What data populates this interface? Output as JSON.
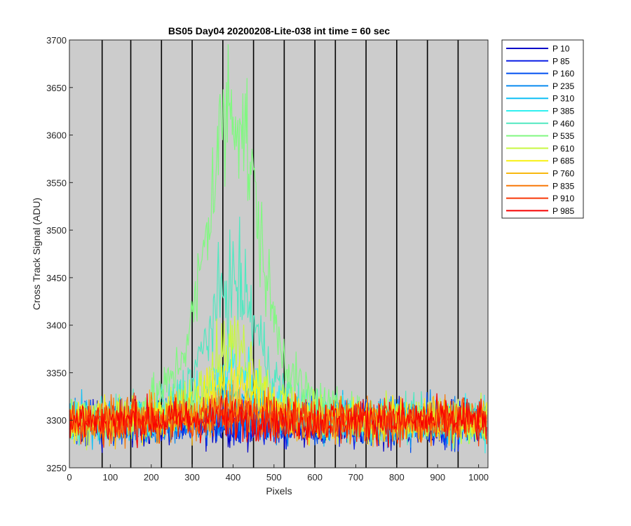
{
  "chart_data": {
    "type": "line",
    "title": "BS05 Day04 20200208-Lite-038 int time = 60 sec",
    "xlabel": "Pixels",
    "ylabel": "Cross Track Signal (ADU)",
    "xlim": [
      0,
      1023
    ],
    "ylim": [
      3250,
      3700
    ],
    "xticks": [
      0,
      100,
      200,
      300,
      400,
      500,
      600,
      700,
      800,
      900,
      1000
    ],
    "yticks": [
      3250,
      3300,
      3350,
      3400,
      3450,
      3500,
      3550,
      3600,
      3650,
      3700
    ],
    "background_color": "#cccccc",
    "vertical_lines_x": [
      80,
      150,
      225,
      300,
      375,
      450,
      525,
      600,
      650,
      725,
      800,
      875,
      950
    ],
    "legend_position": "outside-top-right",
    "baseline": 3300,
    "noise_range": [
      3265,
      3335
    ],
    "peak_center": 400,
    "series": [
      {
        "name": "P 10",
        "color": "#0000c8",
        "peak_height": 0
      },
      {
        "name": "P 85",
        "color": "#0a1ee6",
        "peak_height": 0
      },
      {
        "name": "P 160",
        "color": "#0050f0",
        "peak_height": 0
      },
      {
        "name": "P 235",
        "color": "#0a8cf0",
        "peak_height": 5
      },
      {
        "name": "P 310",
        "color": "#10c0f5",
        "peak_height": 25
      },
      {
        "name": "P 385",
        "color": "#30f0f0",
        "peak_height": 55
      },
      {
        "name": "P 460",
        "color": "#50e8c0",
        "peak_height": 145
      },
      {
        "name": "P 535",
        "color": "#80f880",
        "peak_height": 335
      },
      {
        "name": "P 610",
        "color": "#c8f840",
        "peak_height": 80
      },
      {
        "name": "P 685",
        "color": "#f8f010",
        "peak_height": 40
      },
      {
        "name": "P 760",
        "color": "#f8b810",
        "peak_height": 15
      },
      {
        "name": "P 835",
        "color": "#f87808",
        "peak_height": 8
      },
      {
        "name": "P 910",
        "color": "#f83808",
        "peak_height": 5
      },
      {
        "name": "P 985",
        "color": "#f80000",
        "peak_height": 3
      }
    ]
  }
}
